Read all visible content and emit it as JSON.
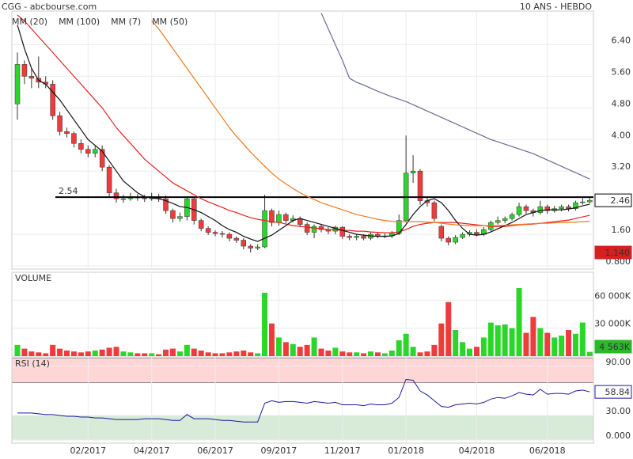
{
  "header": {
    "left": "CGG - abcbourse.com",
    "right": "10 ANS - HEBDO"
  },
  "chart_data": [
    {
      "type": "candlestick",
      "categories": [
        null,
        null,
        null,
        null,
        null,
        null,
        null,
        null,
        null,
        null,
        "02/2017",
        null,
        null,
        null,
        null,
        null,
        null,
        null,
        null,
        "04/2017",
        null,
        null,
        null,
        null,
        null,
        null,
        null,
        null,
        "06/2017",
        null,
        null,
        null,
        null,
        null,
        null,
        null,
        null,
        "09/2017",
        null,
        null,
        null,
        null,
        null,
        null,
        null,
        null,
        "11/2017",
        null,
        null,
        null,
        null,
        null,
        null,
        null,
        null,
        "01/2018",
        null,
        null,
        null,
        null,
        null,
        null,
        null,
        null,
        null,
        "04/2018",
        null,
        null,
        null,
        null,
        null,
        null,
        null,
        null,
        null,
        "06/2018",
        null,
        null,
        null,
        null,
        null,
        null
      ],
      "open": [
        4.9,
        5.9,
        5.6,
        5.55,
        5.45,
        5.4,
        4.6,
        4.2,
        4.15,
        3.9,
        3.75,
        3.65,
        3.75,
        3.3,
        2.65,
        2.5,
        2.5,
        2.55,
        2.52,
        2.5,
        2.55,
        2.5,
        2.2,
        2.0,
        2.05,
        2.5,
        1.95,
        1.75,
        1.65,
        1.62,
        1.6,
        1.5,
        1.45,
        1.3,
        1.25,
        1.28,
        2.2,
        1.9,
        2.1,
        1.95,
        2.0,
        1.85,
        1.65,
        1.8,
        1.72,
        1.68,
        1.78,
        1.55,
        1.52,
        1.55,
        1.5,
        1.6,
        1.55,
        1.56,
        1.62,
        1.95,
        3.15,
        3.2,
        2.45,
        2.4,
        1.8,
        1.5,
        1.4,
        1.52,
        1.6,
        1.65,
        1.6,
        1.72,
        1.9,
        1.95,
        2.0,
        2.1,
        2.3,
        2.2,
        2.15,
        2.3,
        2.2,
        2.25,
        2.3,
        2.25,
        2.4,
        2.42
      ],
      "high": [
        6.2,
        6.0,
        5.8,
        6.1,
        5.6,
        5.5,
        4.7,
        4.3,
        4.2,
        4.0,
        3.85,
        3.85,
        3.85,
        3.35,
        2.75,
        2.6,
        2.65,
        2.62,
        2.6,
        2.65,
        2.62,
        2.58,
        2.25,
        2.15,
        2.55,
        2.55,
        2.0,
        1.8,
        1.7,
        1.68,
        1.65,
        1.55,
        1.5,
        1.35,
        1.35,
        2.6,
        2.25,
        2.2,
        2.15,
        2.08,
        2.05,
        1.9,
        1.85,
        1.85,
        1.78,
        1.82,
        1.8,
        1.6,
        1.6,
        1.6,
        1.65,
        1.65,
        1.62,
        1.68,
        2.1,
        4.1,
        3.6,
        3.25,
        2.55,
        2.45,
        1.85,
        1.55,
        1.58,
        1.65,
        1.7,
        1.72,
        1.78,
        1.95,
        2.05,
        2.05,
        2.15,
        2.4,
        2.35,
        2.25,
        2.45,
        2.35,
        2.32,
        2.35,
        2.35,
        2.45,
        2.55,
        2.55
      ],
      "low": [
        4.5,
        5.4,
        5.3,
        5.3,
        5.3,
        4.5,
        4.1,
        4.05,
        3.8,
        3.65,
        3.55,
        3.55,
        3.2,
        2.55,
        2.4,
        2.4,
        2.45,
        2.45,
        2.42,
        2.45,
        2.42,
        2.12,
        1.9,
        1.92,
        1.95,
        1.85,
        1.68,
        1.58,
        1.55,
        1.52,
        1.42,
        1.38,
        1.22,
        1.14,
        1.2,
        1.25,
        1.8,
        1.82,
        1.88,
        1.9,
        1.78,
        1.58,
        1.5,
        1.65,
        1.6,
        1.6,
        1.48,
        1.45,
        1.45,
        1.45,
        1.45,
        1.5,
        1.5,
        1.5,
        1.58,
        1.9,
        2.9,
        2.35,
        2.3,
        1.92,
        1.42,
        1.32,
        1.35,
        1.48,
        1.55,
        1.55,
        1.55,
        1.68,
        1.85,
        1.88,
        1.95,
        2.05,
        2.12,
        2.05,
        2.1,
        2.12,
        2.15,
        2.18,
        2.18,
        2.2,
        2.35,
        2.38
      ],
      "close": [
        5.9,
        5.6,
        5.55,
        5.45,
        5.4,
        4.6,
        4.2,
        4.15,
        3.9,
        3.75,
        3.65,
        3.75,
        3.3,
        2.65,
        2.5,
        2.5,
        2.55,
        2.52,
        2.5,
        2.55,
        2.5,
        2.2,
        2.0,
        2.05,
        2.5,
        1.95,
        1.75,
        1.65,
        1.62,
        1.6,
        1.5,
        1.45,
        1.3,
        1.25,
        1.28,
        2.2,
        1.9,
        2.1,
        1.95,
        2.0,
        1.85,
        1.65,
        1.8,
        1.72,
        1.68,
        1.78,
        1.55,
        1.52,
        1.55,
        1.5,
        1.6,
        1.55,
        1.56,
        1.62,
        1.95,
        3.15,
        3.2,
        2.45,
        2.4,
        2.0,
        1.5,
        1.4,
        1.52,
        1.6,
        1.65,
        1.6,
        1.72,
        1.9,
        1.95,
        2.0,
        2.1,
        2.3,
        2.2,
        2.15,
        2.3,
        2.2,
        2.25,
        2.3,
        2.25,
        2.4,
        2.42,
        2.46
      ],
      "up_color": "#2bd62b",
      "down_color": "#ef3b3b",
      "ylim": [
        0.72,
        7.25
      ],
      "yticks": [
        {
          "value": 0.8,
          "label": "0.800"
        },
        {
          "value": 1.6,
          "label": "1.60"
        },
        {
          "value": 3.2,
          "label": "3.20"
        },
        {
          "value": 4.0,
          "label": "4.00"
        },
        {
          "value": 4.8,
          "label": "4.80"
        },
        {
          "value": 5.6,
          "label": "5.60"
        },
        {
          "value": 6.4,
          "label": "6.40"
        }
      ],
      "reference_line": {
        "value": 2.54,
        "label": "2.54"
      },
      "annotation": {
        "value": 1.14,
        "label": "1.140",
        "color": "#d42020"
      },
      "series": [
        {
          "name": "MM (20)",
          "color": "#e8231f",
          "values": [
            7.15,
            7.0,
            6.8,
            6.6,
            6.4,
            6.2,
            6.0,
            5.8,
            5.6,
            5.4,
            5.2,
            5.0,
            4.8,
            4.55,
            4.3,
            4.1,
            3.9,
            3.7,
            3.5,
            3.35,
            3.2,
            3.05,
            2.9,
            2.8,
            2.7,
            2.6,
            2.5,
            2.42,
            2.35,
            2.28,
            2.2,
            2.15,
            2.08,
            2.02,
            1.98,
            1.95,
            1.92,
            1.9,
            1.86,
            1.82,
            1.8,
            1.78,
            1.76,
            1.74,
            1.72,
            1.72,
            1.7,
            1.7,
            1.68,
            1.68,
            1.66,
            1.65,
            1.64,
            1.64,
            1.66,
            1.72,
            1.8,
            1.85,
            1.88,
            1.9,
            1.9,
            1.9,
            1.9,
            1.88,
            1.86,
            1.84,
            1.82,
            1.8,
            1.8,
            1.8,
            1.82,
            1.84,
            1.85,
            1.86,
            1.88,
            1.9,
            1.92,
            1.94,
            1.96,
            2.0,
            2.04,
            2.08
          ]
        },
        {
          "name": "MM (100)",
          "color": "#6b6b9a",
          "values": [
            null,
            null,
            null,
            null,
            null,
            null,
            null,
            null,
            null,
            null,
            null,
            null,
            null,
            null,
            null,
            null,
            null,
            null,
            null,
            null,
            null,
            null,
            null,
            null,
            null,
            null,
            null,
            null,
            null,
            null,
            null,
            null,
            null,
            null,
            null,
            null,
            null,
            null,
            null,
            null,
            null,
            null,
            null,
            7.2,
            6.8,
            6.4,
            6.0,
            5.55,
            5.45,
            5.38,
            5.3,
            5.22,
            5.15,
            5.08,
            5.02,
            4.96,
            4.88,
            4.8,
            4.72,
            4.64,
            4.56,
            4.48,
            4.4,
            4.32,
            4.24,
            4.16,
            4.08,
            4.0,
            3.94,
            3.88,
            3.82,
            3.76,
            3.7,
            3.64,
            3.56,
            3.48,
            3.4,
            3.32,
            3.24,
            3.16,
            3.08,
            3.0
          ]
        },
        {
          "name": "MM (7)",
          "color": "#111111",
          "values": [
            6.9,
            6.3,
            5.8,
            5.5,
            5.4,
            5.2,
            5.0,
            4.75,
            4.5,
            4.25,
            4.0,
            3.85,
            3.7,
            3.45,
            3.2,
            2.95,
            2.8,
            2.65,
            2.55,
            2.52,
            2.5,
            2.45,
            2.38,
            2.3,
            2.28,
            2.22,
            2.15,
            2.05,
            1.95,
            1.82,
            1.72,
            1.65,
            1.55,
            1.48,
            1.42,
            1.5,
            1.58,
            1.7,
            1.82,
            1.95,
            2.0,
            1.95,
            1.9,
            1.85,
            1.8,
            1.75,
            1.7,
            1.65,
            1.6,
            1.58,
            1.56,
            1.55,
            1.55,
            1.56,
            1.62,
            1.85,
            2.1,
            2.3,
            2.45,
            2.5,
            2.4,
            2.2,
            1.95,
            1.75,
            1.6,
            1.58,
            1.6,
            1.66,
            1.74,
            1.82,
            1.9,
            2.0,
            2.1,
            2.15,
            2.2,
            2.22,
            2.22,
            2.22,
            2.24,
            2.27,
            2.32,
            2.36
          ]
        },
        {
          "name": "MM (50)",
          "color": "#f07a1a",
          "values": [
            null,
            null,
            null,
            null,
            null,
            null,
            null,
            null,
            null,
            null,
            null,
            null,
            null,
            null,
            null,
            null,
            null,
            null,
            null,
            7.0,
            6.8,
            6.55,
            6.3,
            6.05,
            5.8,
            5.55,
            5.3,
            5.05,
            4.8,
            4.55,
            4.3,
            4.08,
            3.88,
            3.68,
            3.5,
            3.32,
            3.15,
            3.0,
            2.88,
            2.76,
            2.65,
            2.56,
            2.48,
            2.4,
            2.34,
            2.28,
            2.22,
            2.16,
            2.1,
            2.06,
            2.02,
            1.98,
            1.95,
            1.93,
            1.92,
            1.92,
            1.92,
            1.92,
            1.91,
            1.9,
            1.88,
            1.86,
            1.84,
            1.83,
            1.82,
            1.82,
            1.82,
            1.82,
            1.82,
            1.83,
            1.84,
            1.85,
            1.86,
            1.87,
            1.88,
            1.88,
            1.89,
            1.9,
            1.9,
            1.91,
            1.92,
            1.93
          ]
        }
      ]
    },
    {
      "type": "bar",
      "title": "VOLUME",
      "values": [
        12000,
        8000,
        5000,
        4000,
        3000,
        12000,
        8000,
        6000,
        5000,
        4000,
        5000,
        6000,
        7000,
        9000,
        10000,
        5000,
        4000,
        3000,
        3000,
        3000,
        2000,
        7000,
        8000,
        5000,
        12000,
        8000,
        6000,
        4000,
        3000,
        3000,
        4000,
        5000,
        6000,
        4000,
        3000,
        68000,
        35000,
        20000,
        15000,
        13000,
        10000,
        12000,
        20000,
        8000,
        6000,
        9000,
        5000,
        4000,
        4000,
        3000,
        5000,
        4000,
        3000,
        6000,
        17000,
        24000,
        10000,
        4000,
        5000,
        12000,
        35000,
        58000,
        28000,
        15000,
        8000,
        10000,
        20000,
        36000,
        33000,
        34000,
        30000,
        73000,
        25000,
        42000,
        30000,
        25000,
        20000,
        22000,
        28000,
        24000,
        36000,
        4563
      ],
      "value_labels": [
        null,
        null,
        null,
        null,
        null,
        null,
        null,
        null,
        null,
        null,
        null,
        null,
        null,
        null,
        null,
        null,
        null,
        null,
        null,
        null,
        null,
        null,
        null,
        null,
        null,
        null,
        null,
        null,
        null,
        null,
        null,
        null,
        null,
        null,
        null,
        null,
        null,
        null,
        null,
        null,
        null,
        null,
        null,
        null,
        null,
        null,
        null,
        null,
        null,
        null,
        null,
        null,
        null,
        null,
        null,
        null,
        null,
        null,
        null,
        null,
        null,
        null,
        null,
        null,
        null,
        null,
        null,
        null,
        null,
        null,
        null,
        null,
        null,
        null,
        null,
        null,
        null,
        null,
        null,
        null,
        null,
        "4 563K"
      ],
      "label_color": "#2bb82b",
      "ylim": [
        0,
        90000
      ],
      "yticks": [
        {
          "value": 30000,
          "label": "30 000K"
        },
        {
          "value": 60000,
          "label": "60 000K"
        }
      ]
    },
    {
      "type": "line",
      "title": "RSI (14)",
      "color": "#1a1aa0",
      "values": [
        33,
        33,
        33,
        32,
        31,
        31,
        30,
        29,
        29,
        28,
        28,
        27,
        27,
        26,
        25,
        25,
        25,
        25,
        26,
        26,
        26,
        25,
        24,
        24,
        31,
        26,
        26,
        26,
        25,
        24,
        24,
        23,
        22,
        22,
        22,
        45,
        48,
        46,
        47,
        47,
        46,
        45,
        47,
        46,
        45,
        46,
        43,
        43,
        43,
        42,
        44,
        43,
        43,
        45,
        52,
        74,
        73,
        60,
        55,
        48,
        41,
        40,
        43,
        44,
        45,
        44,
        46,
        50,
        52,
        51,
        54,
        58,
        56,
        55,
        62,
        56,
        57,
        57,
        56,
        60,
        61,
        58.84
      ],
      "zones": [
        {
          "from": 70,
          "to": 100,
          "color": "#ffd6d6"
        },
        {
          "from": 0,
          "to": 30,
          "color": "#d8ebd8"
        }
      ],
      "ylim": [
        -3.9,
        100.6
      ],
      "yticks": [
        {
          "value": 0,
          "label": "0.000"
        },
        {
          "value": 30,
          "label": "30.00"
        },
        {
          "value": 90,
          "label": "90.00"
        }
      ]
    }
  ]
}
